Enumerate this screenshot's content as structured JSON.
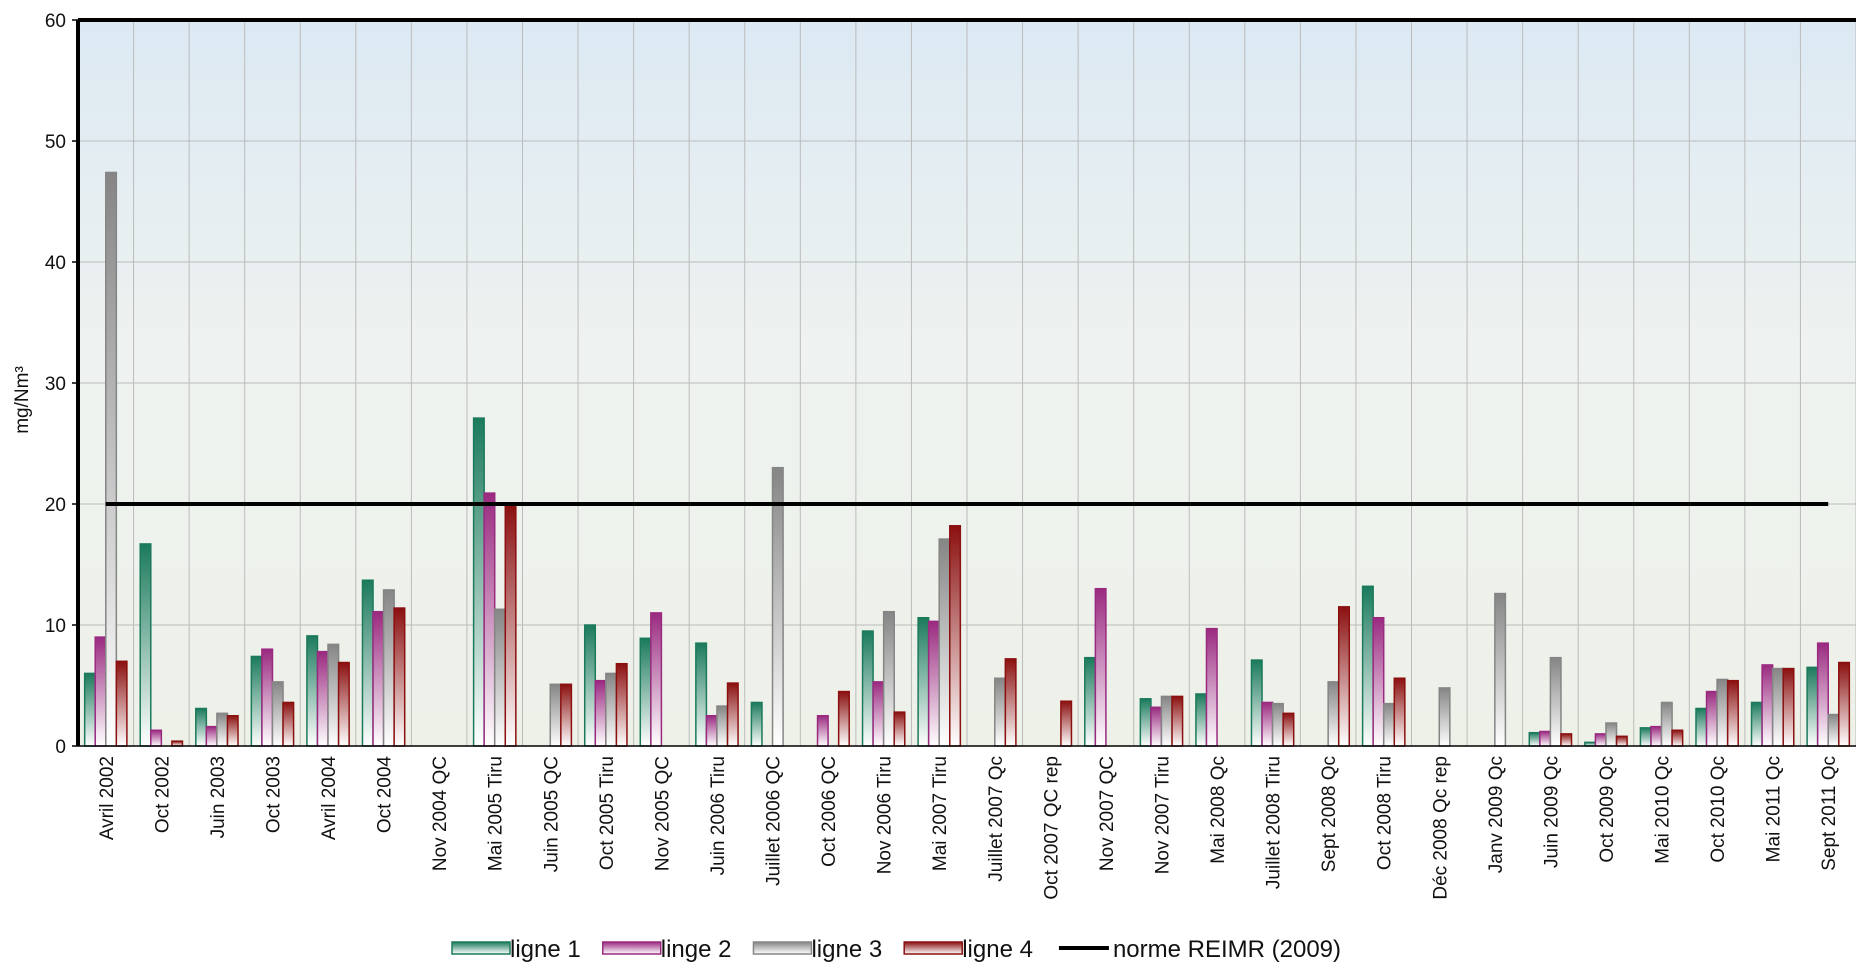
{
  "chart_data": {
    "type": "bar",
    "y_label": "mg/Nm³",
    "categories": [
      "Avril 2002",
      "Oct 2002",
      "Juin 2003",
      "Oct 2003",
      "Avril 2004",
      "Oct 2004",
      "Nov 2004 QC",
      "Mai 2005 Tiru",
      "Juin 2005 QC",
      "Oct 2005 Tiru",
      "Nov 2005 QC",
      "Juin 2006 Tiru",
      "Juillet 2006 QC",
      "Oct 2006 QC",
      "Nov 2006 Tiru",
      "Mai 2007 Tiru",
      "Juillet 2007 Qc",
      "Oct 2007 QC rep",
      "Nov 2007 QC",
      "Nov 2007 Tiru",
      "Mai 2008 Qc",
      "Juillet 2008 Tiru",
      "Sept 2008 Qc",
      "Oct 2008 Tiru",
      "Déc 2008 Qc rep",
      "Janv 2009 Qc",
      "Juin 2009 Qc",
      "Oct 2009 Qc",
      "Mai 2010 Qc",
      "Oct 2010 Qc",
      "Mai 2011 Qc",
      "Sept 2011 Qc"
    ],
    "series": [
      {
        "name": "ligne 1",
        "type": "bar",
        "color": "#1b7a5c",
        "values": [
          6,
          16.7,
          3.1,
          7.4,
          9.1,
          13.7,
          0,
          27.1,
          0,
          10,
          8.9,
          8.5,
          3.6,
          0,
          9.5,
          10.6,
          0,
          0,
          7.3,
          3.9,
          4.3,
          7.1,
          0,
          13.2,
          0,
          0,
          1.1,
          0.3,
          1.5,
          3.1,
          3.6,
          6.5
        ]
      },
      {
        "name": "linge 2",
        "type": "bar",
        "color": "#9a2a80",
        "values": [
          9,
          1.3,
          1.6,
          8,
          7.8,
          11.1,
          0,
          20.9,
          0,
          5.4,
          11,
          2.5,
          0,
          2.5,
          5.3,
          10.3,
          0,
          0,
          13,
          3.2,
          9.7,
          3.6,
          0,
          10.6,
          0,
          0,
          1.2,
          1,
          1.6,
          4.5,
          6.7,
          8.5
        ]
      },
      {
        "name": "ligne 3",
        "type": "bar",
        "color": "#858585",
        "values": [
          47.4,
          0,
          2.7,
          5.3,
          8.4,
          12.9,
          0,
          11.3,
          5.1,
          6,
          0,
          3.3,
          23,
          0,
          11.1,
          17.1,
          5.6,
          0,
          0,
          4.1,
          0,
          3.5,
          5.3,
          3.5,
          4.8,
          12.6,
          7.3,
          1.9,
          3.6,
          5.5,
          6.4,
          2.6
        ]
      },
      {
        "name": "ligne 4",
        "type": "bar",
        "color": "#8b1010",
        "values": [
          7,
          0.4,
          2.5,
          3.6,
          6.9,
          11.4,
          0,
          19.9,
          5.1,
          6.8,
          0,
          5.2,
          0,
          4.5,
          2.8,
          18.2,
          7.2,
          3.7,
          0,
          4.1,
          0,
          2.7,
          11.5,
          5.6,
          0,
          0,
          1,
          0.8,
          1.3,
          5.4,
          6.4,
          6.9
        ]
      },
      {
        "name": "norme REIMR (2009)",
        "type": "line",
        "color": "#000000",
        "values": [
          20,
          20,
          20,
          20,
          20,
          20,
          20,
          20,
          20,
          20,
          20,
          20,
          20,
          20,
          20,
          20,
          20,
          20,
          20,
          20,
          20,
          20,
          20,
          20,
          20,
          20,
          20,
          20,
          20,
          20,
          20,
          20
        ]
      }
    ],
    "ylim": [
      0,
      60
    ],
    "yticks": [
      0,
      10,
      20,
      30,
      40,
      50,
      60
    ],
    "grid": true,
    "legend": "bottom"
  }
}
